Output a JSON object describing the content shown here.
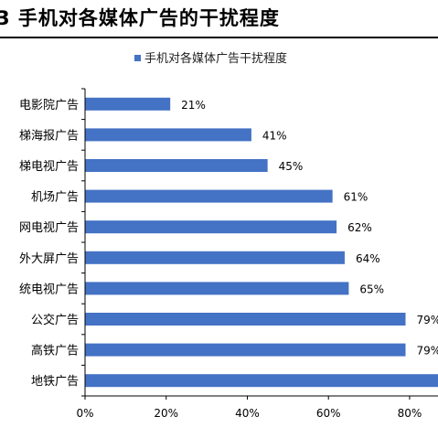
{
  "figure_title": "3 手机对各媒体广告的干扰程度",
  "chart_data": {
    "type": "bar",
    "orientation": "horizontal",
    "title": "",
    "categories": [
      "电影院广告",
      "梯海报广告",
      "梯电视广告",
      "机场广告",
      "网电视广告",
      "外大屏广告",
      "统电视广告",
      "公交广告",
      "高铁广告",
      "地铁广告"
    ],
    "series": [
      {
        "name": "手机对各媒体广告干扰程度",
        "values": [
          21,
          41,
          45,
          61,
          62,
          64,
          65,
          79,
          79,
          87
        ],
        "labels": [
          "21%",
          "41%",
          "45%",
          "61%",
          "62%",
          "64%",
          "65%",
          "79%",
          "79%",
          ""
        ]
      }
    ],
    "x_ticks": [
      "0%",
      "20%",
      "40%",
      "60%",
      "80%"
    ],
    "xlim": [
      0,
      87
    ],
    "legend_position": "top",
    "grid": false,
    "bar_color": "#4472C4"
  }
}
